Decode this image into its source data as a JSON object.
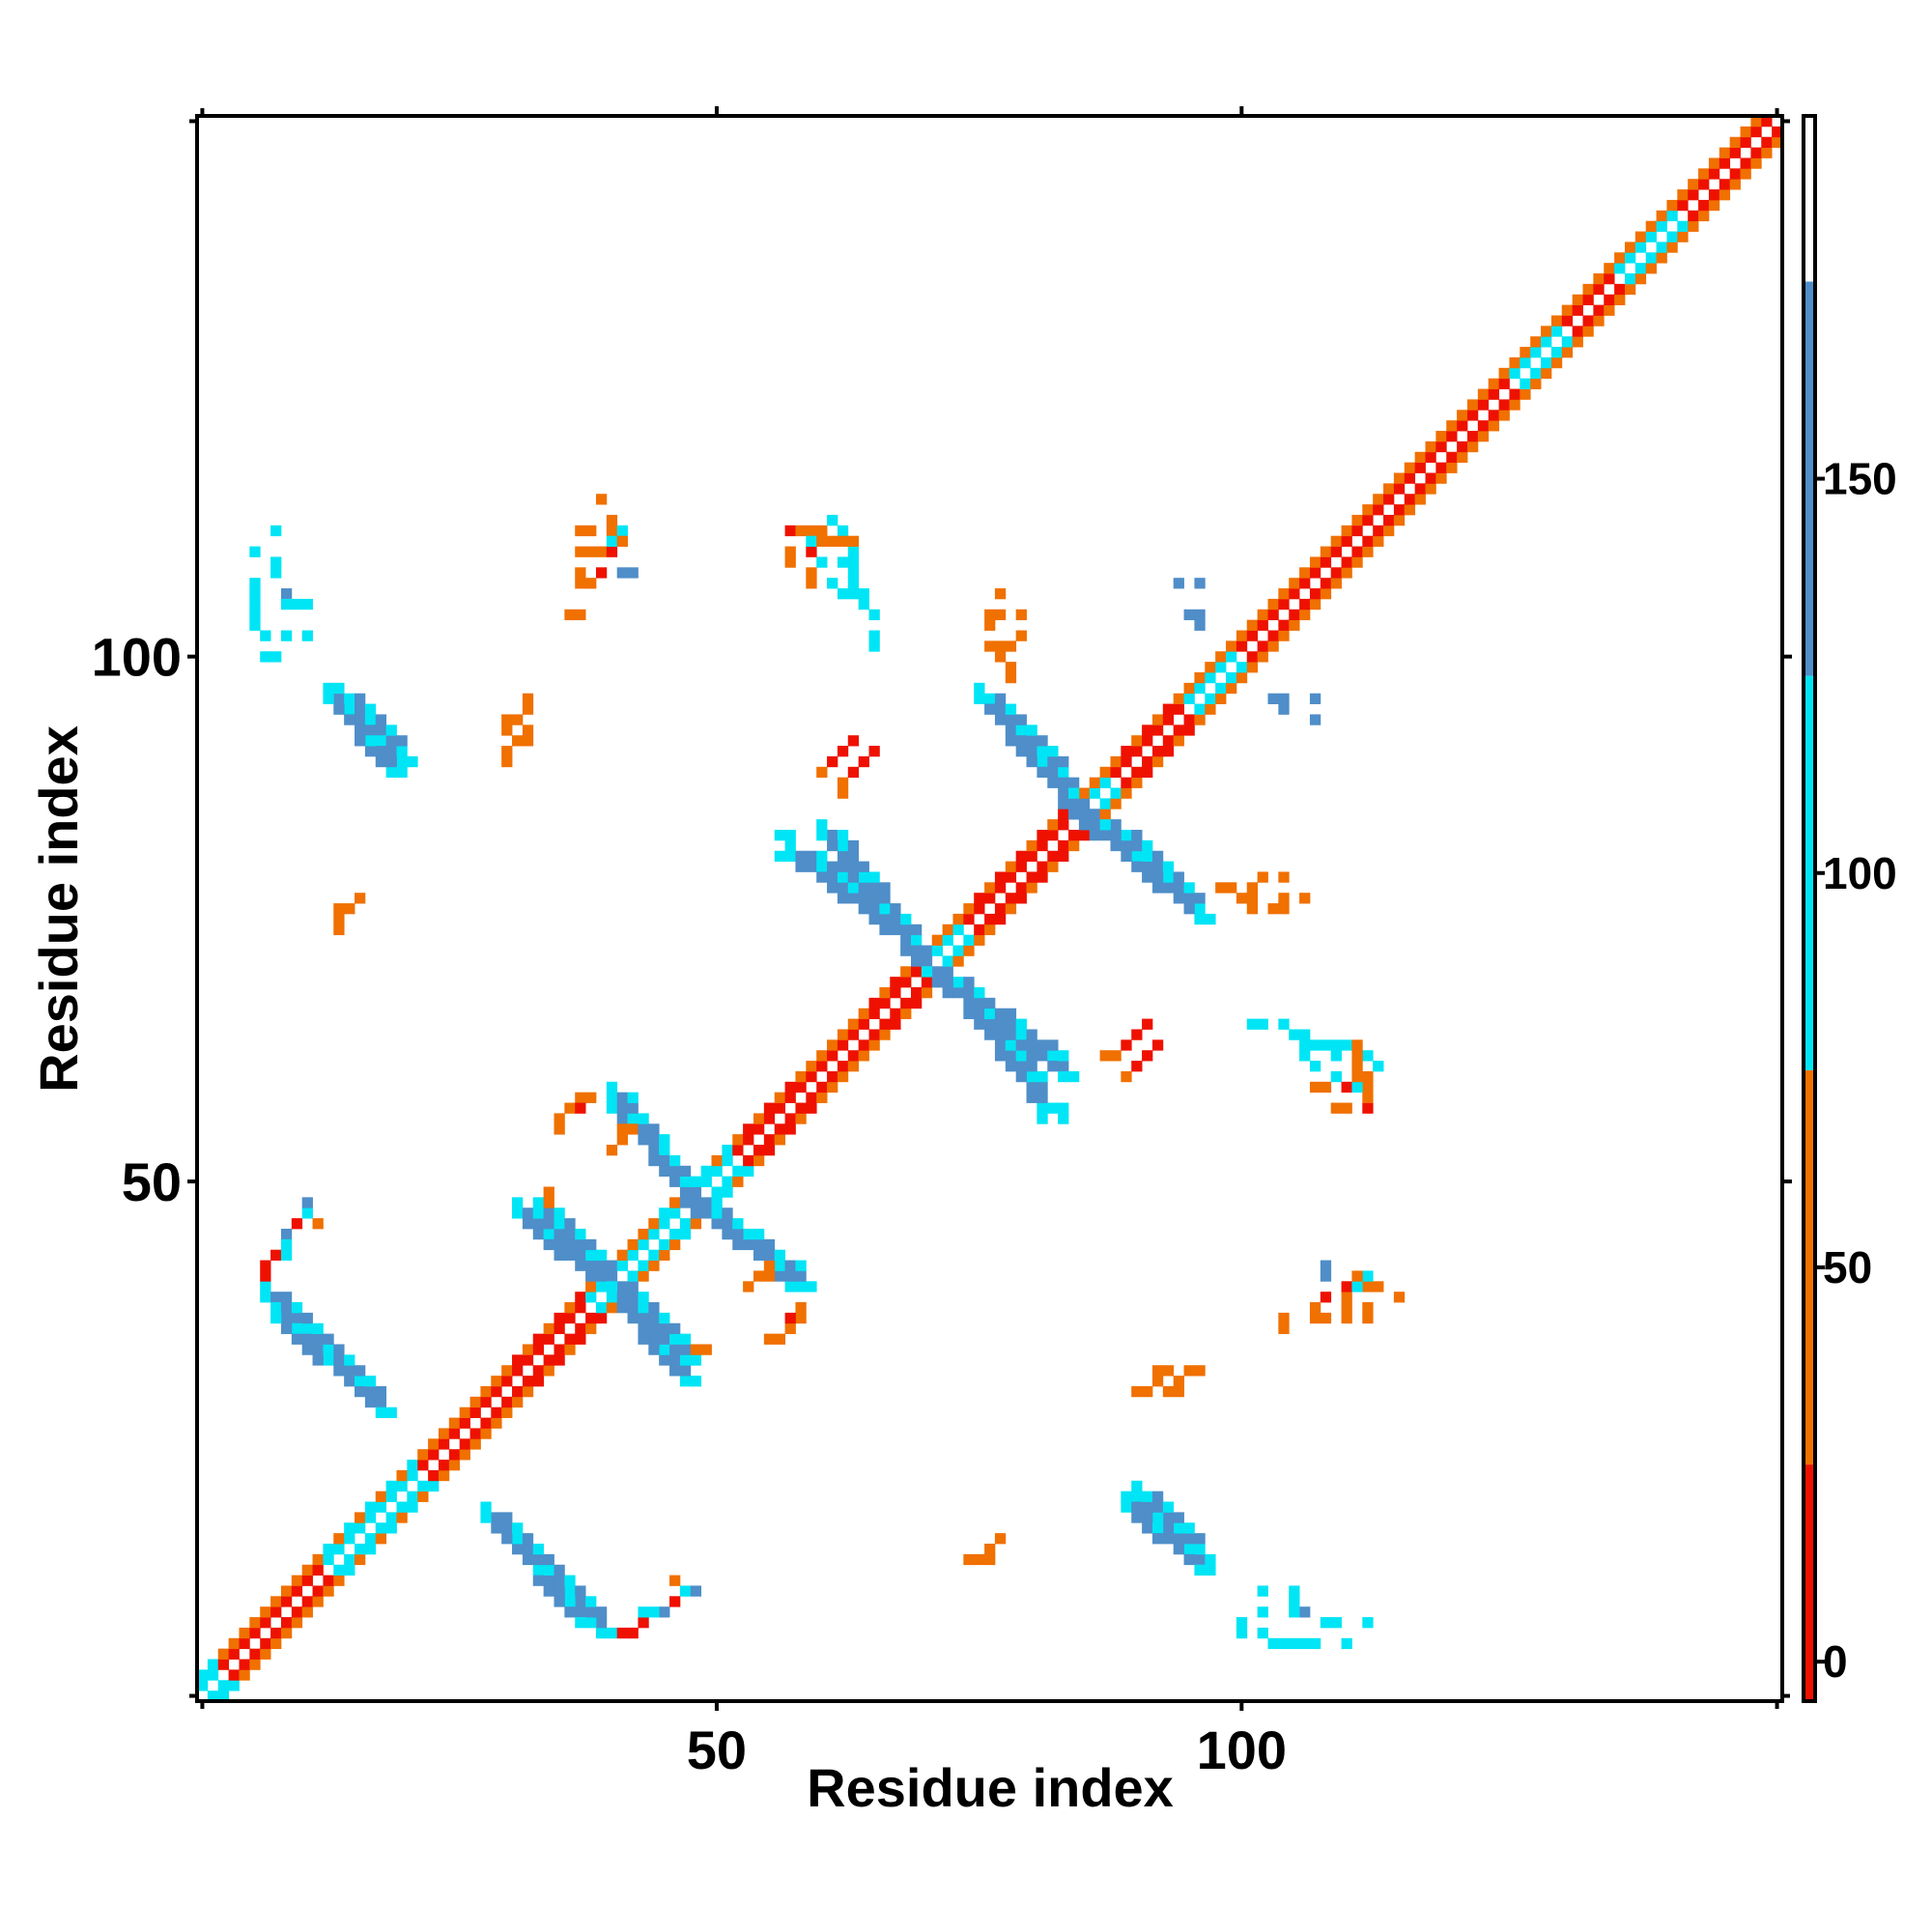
{
  "chart_data": {
    "type": "heatmap",
    "title": "",
    "xlabel": "Residue index",
    "ylabel": "Residue index",
    "xlim": [
      1,
      151
    ],
    "ylim": [
      1,
      151
    ],
    "x_ticks": [
      50,
      100
    ],
    "y_ticks": [
      50,
      100
    ],
    "grid": false,
    "colorbar": {
      "range": [
        -5,
        196
      ],
      "ticks": [
        0,
        50,
        100,
        150
      ],
      "bands": [
        {
          "from": -5,
          "to": 25,
          "color": "#ee1100"
        },
        {
          "from": 25,
          "to": 75,
          "color": "#f07000"
        },
        {
          "from": 75,
          "to": 125,
          "color": "#00e5f5"
        },
        {
          "from": 125,
          "to": 175,
          "color": "#4f8ec8"
        },
        {
          "from": 175,
          "to": 196,
          "color": "#ffffff"
        }
      ]
    },
    "diagonal_band": {
      "from": 1,
      "to": 151,
      "pattern": "checkered i-2..i+2",
      "segments": [
        {
          "from": 1,
          "to": 3,
          "class": "turn"
        },
        {
          "from": 3,
          "to": 13,
          "class": "helix-mixed"
        },
        {
          "from": 13,
          "to": 22,
          "class": "extended-turn"
        },
        {
          "from": 22,
          "to": 30,
          "class": "helix-mixed"
        },
        {
          "from": 30,
          "to": 38,
          "class": "helix"
        },
        {
          "from": 38,
          "to": 45,
          "class": "turn-strand"
        },
        {
          "from": 45,
          "to": 52,
          "class": "extended-turn"
        },
        {
          "from": 52,
          "to": 58,
          "class": "helix"
        },
        {
          "from": 58,
          "to": 64,
          "class": "helix-mixed"
        },
        {
          "from": 64,
          "to": 70,
          "class": "helix"
        },
        {
          "from": 70,
          "to": 74,
          "class": "turn-strand"
        },
        {
          "from": 74,
          "to": 80,
          "class": "helix"
        },
        {
          "from": 80,
          "to": 85,
          "class": "helix"
        },
        {
          "from": 85,
          "to": 88,
          "class": "turn-strand"
        },
        {
          "from": 88,
          "to": 95,
          "class": "helix"
        },
        {
          "from": 95,
          "to": 100,
          "class": "turn-strand"
        },
        {
          "from": 100,
          "to": 112,
          "class": "helix-mixed"
        },
        {
          "from": 112,
          "to": 122,
          "class": "helix-mixed"
        },
        {
          "from": 122,
          "to": 126,
          "class": "helix-mixed"
        },
        {
          "from": 126,
          "to": 131,
          "class": "turn-strand"
        },
        {
          "from": 131,
          "to": 136,
          "class": "helix-mixed"
        },
        {
          "from": 136,
          "to": 142,
          "class": "turn-strand"
        },
        {
          "from": 142,
          "to": 151,
          "class": "helix-mixed"
        }
      ]
    },
    "strand_pairings": [
      {
        "i": [
          14,
          20
        ],
        "j": [
          96,
          90
        ],
        "type": "antiparallel"
      },
      {
        "i": [
          7,
          18
        ],
        "j": [
          39,
          28
        ],
        "type": "antiparallel"
      },
      {
        "i": [
          28,
          37
        ],
        "j": [
          18,
          8
        ],
        "type": "antiparallel"
      },
      {
        "i": [
          31,
          40
        ],
        "j": [
          47,
          39
        ],
        "type": "antiparallel"
      },
      {
        "i": [
          40,
          47
        ],
        "j": [
          40,
          33
        ],
        "type": "antiparallel"
      },
      {
        "i": [
          40,
          47
        ],
        "j": [
          57,
          49
        ],
        "type": "antiparallel"
      },
      {
        "i": [
          47,
          58
        ],
        "j": [
          48,
          40
        ],
        "type": "antiparallel"
      },
      {
        "i": [
          57,
          68
        ],
        "j": [
          81,
          73
        ],
        "type": "antiparallel"
      },
      {
        "i": [
          70,
          83
        ],
        "j": [
          70,
          60
        ],
        "type": "antiparallel"
      },
      {
        "i": [
          75,
          83
        ],
        "j": [
          96,
          88
        ],
        "type": "antiparallel"
      },
      {
        "i": [
          84,
          96
        ],
        "j": [
          85,
          75
        ],
        "type": "antiparallel"
      },
      {
        "i": [
          89,
          96
        ],
        "j": [
          19,
          13
        ],
        "type": "antiparallel"
      }
    ],
    "isolated_contacts": [
      {
        "x": 8,
        "y": 112,
        "v": 95
      },
      {
        "x": 8,
        "y": 109,
        "v": 100
      },
      {
        "x": 8,
        "y": 108,
        "v": 95
      },
      {
        "x": 9,
        "y": 106,
        "v": 150
      },
      {
        "x": 9,
        "y": 105,
        "v": 100
      },
      {
        "x": 10,
        "y": 105,
        "v": 95
      },
      {
        "x": 11,
        "y": 105,
        "v": 100
      },
      {
        "x": 9,
        "y": 102,
        "v": 95
      },
      {
        "x": 11,
        "y": 102,
        "v": 95
      },
      {
        "x": 14,
        "y": 76,
        "v": 60
      },
      {
        "x": 15,
        "y": 76,
        "v": 55
      },
      {
        "x": 16,
        "y": 77,
        "v": 60
      },
      {
        "x": 9,
        "y": 45,
        "v": 10
      },
      {
        "x": 9,
        "y": 44,
        "v": 10
      },
      {
        "x": 10,
        "y": 46,
        "v": 10
      },
      {
        "x": 11,
        "y": 47,
        "v": 100
      },
      {
        "x": 11,
        "y": 48,
        "v": 150
      },
      {
        "x": 12,
        "y": 46,
        "v": 60
      },
      {
        "x": 30,
        "y": 93,
        "v": 60
      },
      {
        "x": 30,
        "y": 94,
        "v": 60
      },
      {
        "x": 31,
        "y": 94,
        "v": 55
      },
      {
        "x": 32,
        "y": 95,
        "v": 60
      },
      {
        "x": 32,
        "y": 96,
        "v": 60
      },
      {
        "x": 34,
        "y": 49,
        "v": 55
      },
      {
        "x": 34,
        "y": 48,
        "v": 60
      },
      {
        "x": 35,
        "y": 56,
        "v": 60
      },
      {
        "x": 35,
        "y": 55,
        "v": 55
      },
      {
        "x": 36,
        "y": 57,
        "v": 60
      },
      {
        "x": 37,
        "y": 58,
        "v": 55
      },
      {
        "x": 38,
        "y": 58,
        "v": 60
      },
      {
        "x": 37,
        "y": 57,
        "v": 10
      },
      {
        "x": 36,
        "y": 104,
        "v": 60
      },
      {
        "x": 37,
        "y": 108,
        "v": 60
      },
      {
        "x": 37,
        "y": 112,
        "v": 60
      },
      {
        "x": 38,
        "y": 112,
        "v": 60
      },
      {
        "x": 39,
        "y": 108,
        "v": 10
      },
      {
        "x": 40,
        "y": 112,
        "v": 55
      },
      {
        "x": 39,
        "y": 115,
        "v": 60
      },
      {
        "x": 40,
        "y": 113,
        "v": 100
      },
      {
        "x": 41,
        "y": 112,
        "v": 100
      },
      {
        "x": 42,
        "y": 108,
        "v": 150
      },
      {
        "x": 41,
        "y": 7,
        "v": 10
      },
      {
        "x": 42,
        "y": 7,
        "v": 10
      },
      {
        "x": 43,
        "y": 8,
        "v": 10
      },
      {
        "x": 43,
        "y": 9,
        "v": 100
      },
      {
        "x": 44,
        "y": 9,
        "v": 95
      },
      {
        "x": 45,
        "y": 9,
        "v": 150
      },
      {
        "x": 53,
        "y": 40,
        "v": 55
      },
      {
        "x": 54,
        "y": 41,
        "v": 60
      },
      {
        "x": 55,
        "y": 41,
        "v": 55
      },
      {
        "x": 55,
        "y": 42,
        "v": 60
      },
      {
        "x": 57,
        "y": 112,
        "v": 10
      },
      {
        "x": 58,
        "y": 112,
        "v": 60
      },
      {
        "x": 59,
        "y": 112,
        "v": 60
      },
      {
        "x": 60,
        "y": 112,
        "v": 55
      },
      {
        "x": 62,
        "y": 112,
        "v": 100
      },
      {
        "x": 61,
        "y": 113,
        "v": 100
      },
      {
        "x": 57,
        "y": 109,
        "v": 60
      },
      {
        "x": 57,
        "y": 110,
        "v": 60
      },
      {
        "x": 60,
        "y": 109,
        "v": 95
      },
      {
        "x": 62,
        "y": 109,
        "v": 100
      },
      {
        "x": 63,
        "y": 109,
        "v": 100
      },
      {
        "x": 63,
        "y": 110,
        "v": 100
      },
      {
        "x": 62,
        "y": 106,
        "v": 100
      },
      {
        "x": 63,
        "y": 106,
        "v": 100
      },
      {
        "x": 64,
        "y": 106,
        "v": 95
      },
      {
        "x": 65,
        "y": 102,
        "v": 95
      },
      {
        "x": 60,
        "y": 89,
        "v": 60
      },
      {
        "x": 61,
        "y": 90,
        "v": 10
      },
      {
        "x": 62,
        "y": 91,
        "v": 10
      },
      {
        "x": 63,
        "y": 92,
        "v": 10
      },
      {
        "x": 56,
        "y": 83,
        "v": 95
      },
      {
        "x": 57,
        "y": 83,
        "v": 100
      },
      {
        "x": 77,
        "y": 106,
        "v": 60
      },
      {
        "x": 76,
        "y": 104,
        "v": 60
      },
      {
        "x": 77,
        "y": 104,
        "v": 60
      },
      {
        "x": 76,
        "y": 103,
        "v": 55
      },
      {
        "x": 76,
        "y": 101,
        "v": 60
      },
      {
        "x": 77,
        "y": 101,
        "v": 60
      },
      {
        "x": 74,
        "y": 14,
        "v": 60
      },
      {
        "x": 75,
        "y": 14,
        "v": 60
      },
      {
        "x": 76,
        "y": 15,
        "v": 55
      },
      {
        "x": 81,
        "y": 56,
        "v": 100
      },
      {
        "x": 81,
        "y": 57,
        "v": 100
      },
      {
        "x": 87,
        "y": 62,
        "v": 60
      },
      {
        "x": 88,
        "y": 62,
        "v": 60
      },
      {
        "x": 89,
        "y": 63,
        "v": 10
      },
      {
        "x": 90,
        "y": 64,
        "v": 10
      },
      {
        "x": 91,
        "y": 65,
        "v": 10
      },
      {
        "x": 90,
        "y": 30,
        "v": 60
      },
      {
        "x": 91,
        "y": 30,
        "v": 55
      },
      {
        "x": 92,
        "y": 31,
        "v": 60
      },
      {
        "x": 93,
        "y": 32,
        "v": 60
      },
      {
        "x": 92,
        "y": 32,
        "v": 60
      },
      {
        "x": 94,
        "y": 107,
        "v": 150
      },
      {
        "x": 96,
        "y": 107,
        "v": 150
      },
      {
        "x": 98,
        "y": 78,
        "v": 60
      },
      {
        "x": 99,
        "y": 78,
        "v": 60
      },
      {
        "x": 100,
        "y": 77,
        "v": 55
      },
      {
        "x": 101,
        "y": 78,
        "v": 60
      },
      {
        "x": 102,
        "y": 79,
        "v": 60
      },
      {
        "x": 104,
        "y": 79,
        "v": 60
      },
      {
        "x": 103,
        "y": 96,
        "v": 150
      },
      {
        "x": 104,
        "y": 95,
        "v": 150
      },
      {
        "x": 104,
        "y": 96,
        "v": 150
      },
      {
        "x": 100,
        "y": 7,
        "v": 95
      },
      {
        "x": 100,
        "y": 8,
        "v": 100
      },
      {
        "x": 102,
        "y": 7,
        "v": 100
      },
      {
        "x": 103,
        "y": 6,
        "v": 95
      },
      {
        "x": 104,
        "y": 6,
        "v": 100
      },
      {
        "x": 105,
        "y": 6,
        "v": 100
      },
      {
        "x": 106,
        "y": 6,
        "v": 95
      },
      {
        "x": 107,
        "y": 6,
        "v": 100
      },
      {
        "x": 110,
        "y": 6,
        "v": 100
      },
      {
        "x": 101,
        "y": 65,
        "v": 100
      },
      {
        "x": 104,
        "y": 65,
        "v": 95
      },
      {
        "x": 105,
        "y": 64,
        "v": 100
      },
      {
        "x": 107,
        "y": 63,
        "v": 100
      },
      {
        "x": 108,
        "y": 63,
        "v": 95
      },
      {
        "x": 107,
        "y": 61,
        "v": 100
      },
      {
        "x": 107,
        "y": 59,
        "v": 55
      },
      {
        "x": 108,
        "y": 59,
        "v": 60
      },
      {
        "x": 110,
        "y": 59,
        "v": 10
      },
      {
        "x": 111,
        "y": 59,
        "v": 100
      },
      {
        "x": 111,
        "y": 60,
        "v": 60
      },
      {
        "x": 111,
        "y": 61,
        "v": 60
      },
      {
        "x": 111,
        "y": 62,
        "v": 55
      },
      {
        "x": 111,
        "y": 63,
        "v": 60
      },
      {
        "x": 112,
        "y": 62,
        "v": 100
      },
      {
        "x": 104,
        "y": 37,
        "v": 60
      },
      {
        "x": 107,
        "y": 37,
        "v": 60
      },
      {
        "x": 108,
        "y": 37,
        "v": 60
      },
      {
        "x": 107,
        "y": 38,
        "v": 60
      },
      {
        "x": 108,
        "y": 39,
        "v": 10
      },
      {
        "x": 108,
        "y": 41,
        "v": 150
      },
      {
        "x": 110,
        "y": 37,
        "v": 60
      },
      {
        "x": 110,
        "y": 38,
        "v": 60
      },
      {
        "x": 110,
        "y": 39,
        "v": 55
      },
      {
        "x": 110,
        "y": 40,
        "v": 10
      },
      {
        "x": 111,
        "y": 40,
        "v": 100
      },
      {
        "x": 111,
        "y": 41,
        "v": 60
      },
      {
        "x": 113,
        "y": 40,
        "v": 60
      }
    ]
  }
}
